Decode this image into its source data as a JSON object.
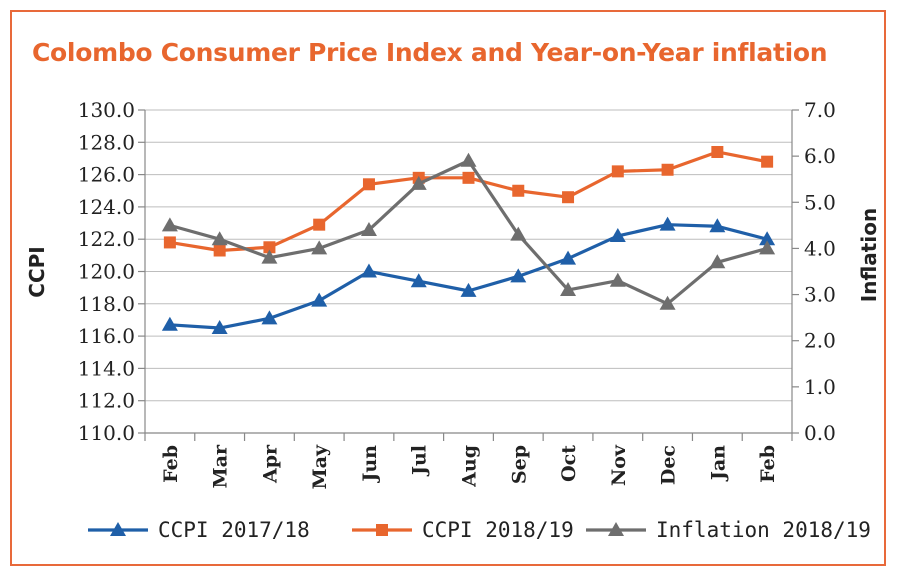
{
  "chart_data": {
    "type": "line",
    "title": "Colombo Consumer Price Index and Year-on-Year inflation",
    "ylabel": "CCPI",
    "y2label": "Inflation",
    "categories": [
      "Feb",
      "Mar",
      "Apr",
      "May",
      "Jun",
      "Jul",
      "Aug",
      "Sep",
      "Oct",
      "Nov",
      "Dec",
      "Jan",
      "Feb"
    ],
    "ylim": [
      110.0,
      130.0
    ],
    "y2lim": [
      0.0,
      7.0
    ],
    "yticks": [
      "110.0",
      "112.0",
      "114.0",
      "116.0",
      "118.0",
      "120.0",
      "122.0",
      "124.0",
      "126.0",
      "128.0",
      "130.0"
    ],
    "y2ticks": [
      "0.0",
      "1.0",
      "2.0",
      "3.0",
      "4.0",
      "5.0",
      "6.0",
      "7.0"
    ],
    "grid": "horizontal",
    "legend_position": "bottom",
    "series": [
      {
        "name": "CCPI 2017/18",
        "axis": "left",
        "color": "#1f5fa8",
        "marker": "triangle",
        "values": [
          116.7,
          116.5,
          117.1,
          118.2,
          120.0,
          119.4,
          118.8,
          119.7,
          120.8,
          122.2,
          122.9,
          122.8,
          122.0
        ]
      },
      {
        "name": "CCPI 2018/19",
        "axis": "left",
        "color": "#e8662e",
        "marker": "square",
        "values": [
          121.8,
          121.3,
          121.5,
          122.9,
          125.4,
          125.8,
          125.8,
          125.0,
          124.6,
          126.2,
          126.3,
          127.4,
          126.8
        ]
      },
      {
        "name": "Inflation 2018/19",
        "axis": "right",
        "color": "#6e6e6e",
        "marker": "triangle",
        "values": [
          4.5,
          4.2,
          3.8,
          4.0,
          4.4,
          5.4,
          5.9,
          4.3,
          3.1,
          3.3,
          2.8,
          3.7,
          4.0
        ]
      }
    ]
  }
}
